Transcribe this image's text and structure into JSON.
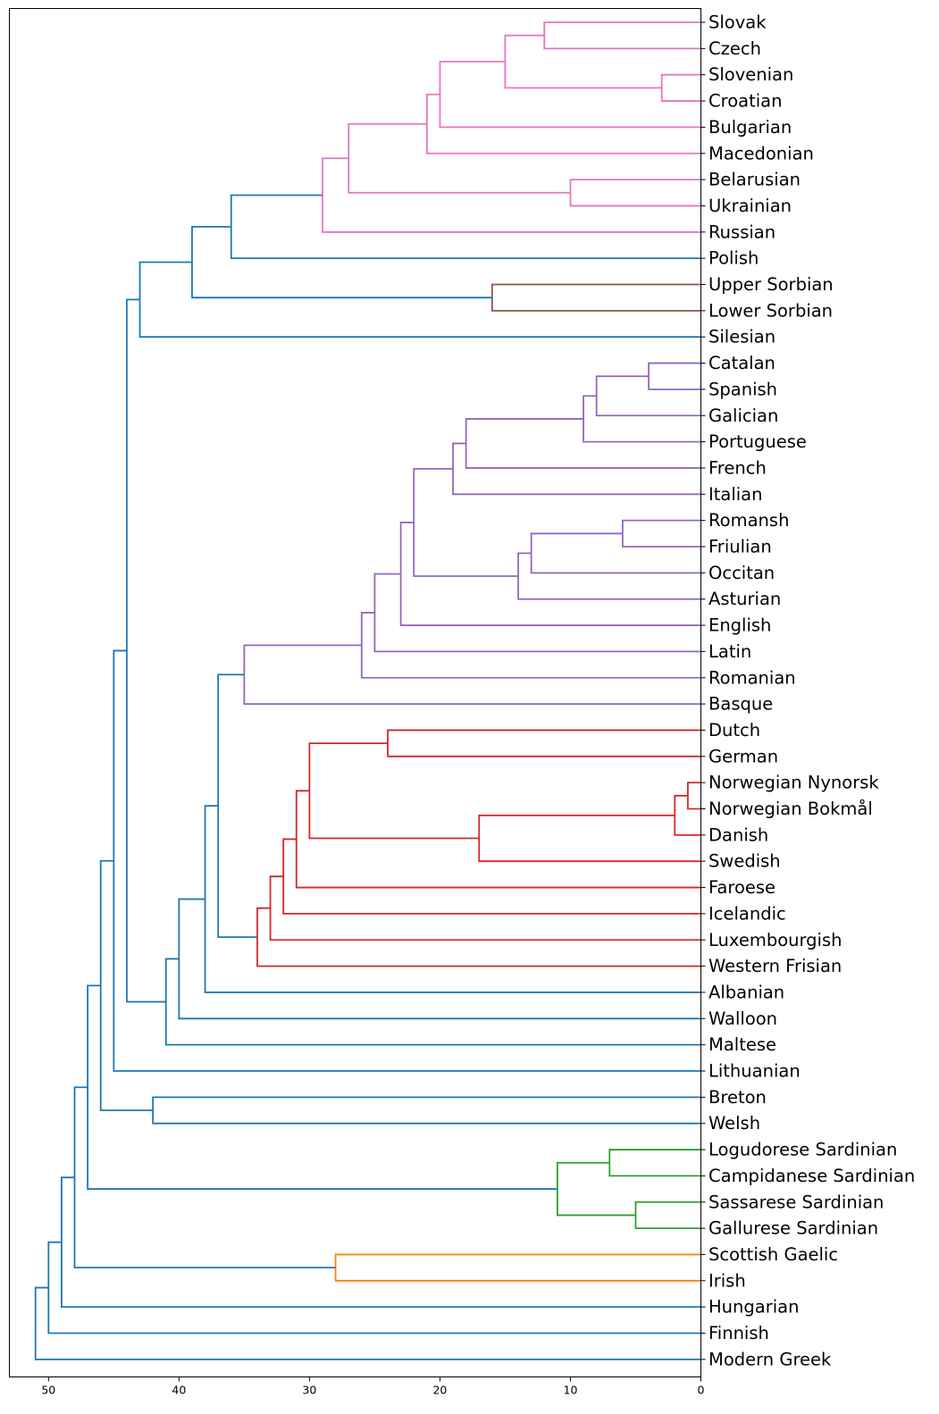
{
  "chart_data": {
    "type": "dendrogram",
    "orientation": "left",
    "xlim": [
      53,
      0
    ],
    "xticks": [
      50,
      40,
      30,
      20,
      10,
      0
    ],
    "colors": {
      "C0": "#1f77b4",
      "C1": "#ff7f0e",
      "C2": "#2ca02c",
      "C3": "#d62728",
      "C4": "#9467bd",
      "C5": "#8c564b",
      "C6": "#e377c2"
    },
    "leaves": [
      "Slovak",
      "Czech",
      "Slovenian",
      "Croatian",
      "Bulgarian",
      "Macedonian",
      "Belarusian",
      "Ukrainian",
      "Russian",
      "Polish",
      "Upper Sorbian",
      "Lower Sorbian",
      "Silesian",
      "Catalan",
      "Spanish",
      "Galician",
      "Portuguese",
      "French",
      "Italian",
      "Romansh",
      "Friulian",
      "Occitan",
      "Asturian",
      "English",
      "Latin",
      "Romanian",
      "Basque",
      "Dutch",
      "German",
      "Norwegian Nynorsk",
      "Norwegian Bokmål",
      "Danish",
      "Swedish",
      "Faroese",
      "Icelandic",
      "Luxembourgish",
      "Western Frisian",
      "Albanian",
      "Walloon",
      "Maltese",
      "Lithuanian",
      "Breton",
      "Welsh",
      "Logudorese Sardinian",
      "Campidanese Sardinian",
      "Sassarese Sardinian",
      "Gallurese Sardinian",
      "Scottish Gaelic",
      "Irish",
      "Hungarian",
      "Finnish",
      "Modern Greek"
    ],
    "merges": [
      {
        "id": "A1",
        "children": [
          "Slovak",
          "Czech"
        ],
        "height": 12,
        "color": "C6"
      },
      {
        "id": "A2",
        "children": [
          "Slovenian",
          "Croatian"
        ],
        "height": 3,
        "color": "C6"
      },
      {
        "id": "A3",
        "children": [
          "A1",
          "A2"
        ],
        "height": 15,
        "color": "C6"
      },
      {
        "id": "A4",
        "children": [
          "A3",
          "Bulgarian"
        ],
        "height": 20,
        "color": "C6"
      },
      {
        "id": "A5",
        "children": [
          "A4",
          "Macedonian"
        ],
        "height": 21,
        "color": "C6"
      },
      {
        "id": "A6",
        "children": [
          "Belarusian",
          "Ukrainian"
        ],
        "height": 10,
        "color": "C6"
      },
      {
        "id": "A7",
        "children": [
          "A5",
          "A6"
        ],
        "height": 27,
        "color": "C6"
      },
      {
        "id": "A8",
        "children": [
          "A7",
          "Russian"
        ],
        "height": 29,
        "color": "C6"
      },
      {
        "id": "A9",
        "children": [
          "A8",
          "Polish"
        ],
        "height": 36,
        "color": "C0"
      },
      {
        "id": "A10",
        "children": [
          "Upper Sorbian",
          "Lower Sorbian"
        ],
        "height": 16,
        "color": "C5"
      },
      {
        "id": "A11",
        "children": [
          "A9",
          "A10"
        ],
        "height": 39,
        "color": "C0"
      },
      {
        "id": "A12",
        "children": [
          "A11",
          "Silesian"
        ],
        "height": 43,
        "color": "C0"
      },
      {
        "id": "B1",
        "children": [
          "Catalan",
          "Spanish"
        ],
        "height": 4,
        "color": "C4"
      },
      {
        "id": "B2",
        "children": [
          "B1",
          "Galician"
        ],
        "height": 8,
        "color": "C4"
      },
      {
        "id": "B3",
        "children": [
          "B2",
          "Portuguese"
        ],
        "height": 9,
        "color": "C4"
      },
      {
        "id": "B4",
        "children": [
          "B3",
          "French"
        ],
        "height": 18,
        "color": "C4"
      },
      {
        "id": "B5",
        "children": [
          "B4",
          "Italian"
        ],
        "height": 19,
        "color": "C4"
      },
      {
        "id": "B6",
        "children": [
          "Romansh",
          "Friulian"
        ],
        "height": 6,
        "color": "C4"
      },
      {
        "id": "B7",
        "children": [
          "B6",
          "Occitan"
        ],
        "height": 13,
        "color": "C4"
      },
      {
        "id": "B8",
        "children": [
          "B7",
          "Asturian"
        ],
        "height": 14,
        "color": "C4"
      },
      {
        "id": "B9",
        "children": [
          "B5",
          "B8"
        ],
        "height": 22,
        "color": "C4"
      },
      {
        "id": "B10",
        "children": [
          "B9",
          "English"
        ],
        "height": 23,
        "color": "C4"
      },
      {
        "id": "B11",
        "children": [
          "B10",
          "Latin"
        ],
        "height": 25,
        "color": "C4"
      },
      {
        "id": "B12",
        "children": [
          "B11",
          "Romanian"
        ],
        "height": 26,
        "color": "C4"
      },
      {
        "id": "B13",
        "children": [
          "B12",
          "Basque"
        ],
        "height": 35,
        "color": "C4"
      },
      {
        "id": "D1",
        "children": [
          "Dutch",
          "German"
        ],
        "height": 24,
        "color": "C3"
      },
      {
        "id": "D2",
        "children": [
          "Norwegian Nynorsk",
          "Norwegian Bokmål"
        ],
        "height": 1,
        "color": "C3"
      },
      {
        "id": "D3",
        "children": [
          "D2",
          "Danish"
        ],
        "height": 2,
        "color": "C3"
      },
      {
        "id": "D4",
        "children": [
          "D3",
          "Swedish"
        ],
        "height": 17,
        "color": "C3"
      },
      {
        "id": "D5",
        "children": [
          "D1",
          "D4"
        ],
        "height": 30,
        "color": "C3"
      },
      {
        "id": "D6",
        "children": [
          "D5",
          "Faroese"
        ],
        "height": 31,
        "color": "C3"
      },
      {
        "id": "D7",
        "children": [
          "D6",
          "Icelandic"
        ],
        "height": 32,
        "color": "C3"
      },
      {
        "id": "D8",
        "children": [
          "D7",
          "Luxembourgish"
        ],
        "height": 33,
        "color": "C3"
      },
      {
        "id": "D9",
        "children": [
          "D8",
          "Western Frisian"
        ],
        "height": 34,
        "color": "C3"
      },
      {
        "id": "E1",
        "children": [
          "B13",
          "D9"
        ],
        "height": 37,
        "color": "C0"
      },
      {
        "id": "E2",
        "children": [
          "E1",
          "Albanian"
        ],
        "height": 38,
        "color": "C0"
      },
      {
        "id": "E3",
        "children": [
          "E2",
          "Walloon"
        ],
        "height": 40,
        "color": "C0"
      },
      {
        "id": "E4",
        "children": [
          "E3",
          "Maltese"
        ],
        "height": 41,
        "color": "C0"
      },
      {
        "id": "E5",
        "children": [
          "A12",
          "E4"
        ],
        "height": 44,
        "color": "C0"
      },
      {
        "id": "E6",
        "children": [
          "E5",
          "Lithuanian"
        ],
        "height": 45,
        "color": "C0"
      },
      {
        "id": "F1",
        "children": [
          "Breton",
          "Welsh"
        ],
        "height": 42,
        "color": "C0"
      },
      {
        "id": "F2",
        "children": [
          "E6",
          "F1"
        ],
        "height": 46,
        "color": "C0"
      },
      {
        "id": "G1",
        "children": [
          "Logudorese Sardinian",
          "Campidanese Sardinian"
        ],
        "height": 7,
        "color": "C2"
      },
      {
        "id": "G2",
        "children": [
          "Sassarese Sardinian",
          "Gallurese Sardinian"
        ],
        "height": 5,
        "color": "C2"
      },
      {
        "id": "G3",
        "children": [
          "G1",
          "G2"
        ],
        "height": 11,
        "color": "C2"
      },
      {
        "id": "G4",
        "children": [
          "F2",
          "G3"
        ],
        "height": 47,
        "color": "C0"
      },
      {
        "id": "H1",
        "children": [
          "Scottish Gaelic",
          "Irish"
        ],
        "height": 28,
        "color": "C1"
      },
      {
        "id": "H2",
        "children": [
          "G4",
          "H1"
        ],
        "height": 48,
        "color": "C0"
      },
      {
        "id": "H3",
        "children": [
          "H2",
          "Hungarian"
        ],
        "height": 49,
        "color": "C0"
      },
      {
        "id": "H4",
        "children": [
          "H3",
          "Finnish"
        ],
        "height": 50,
        "color": "C0"
      },
      {
        "id": "H5",
        "children": [
          "H4",
          "Modern Greek"
        ],
        "height": 51,
        "color": "C0"
      }
    ]
  }
}
